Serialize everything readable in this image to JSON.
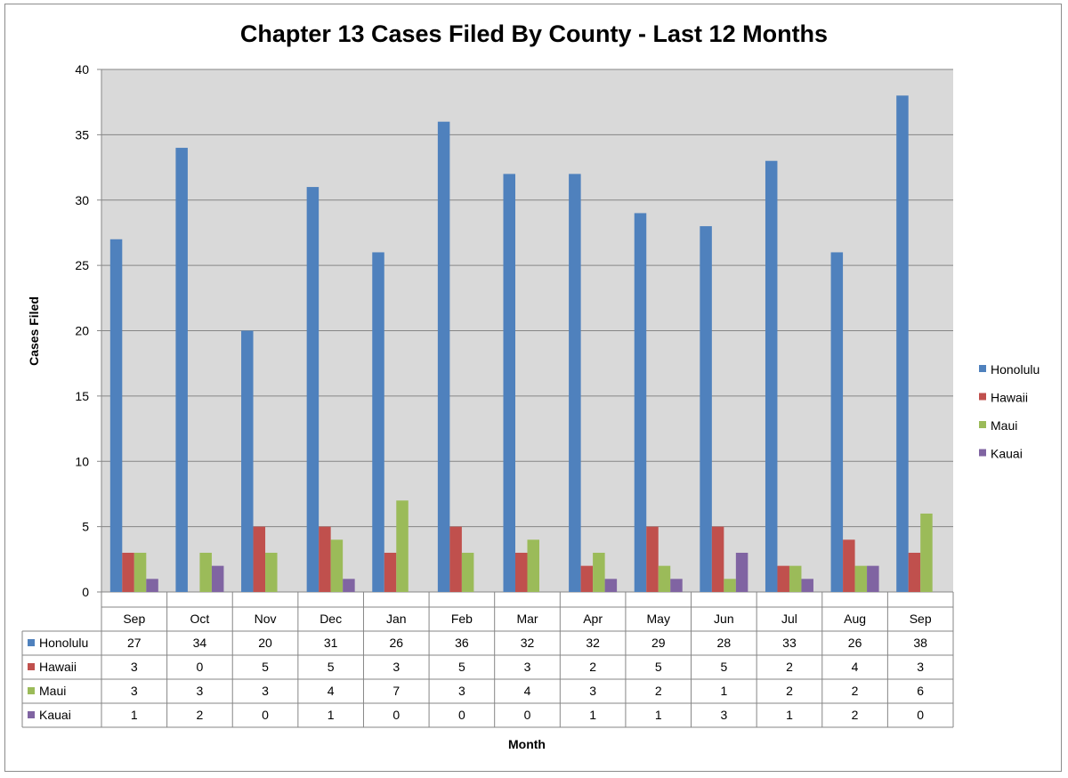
{
  "chart_data": {
    "type": "bar",
    "title": "Chapter 13 Cases Filed By County - Last 12 Months",
    "xlabel": "Month",
    "ylabel": "Cases Filed",
    "ylim": [
      0,
      40
    ],
    "yticks": [
      0,
      5,
      10,
      15,
      20,
      25,
      30,
      35,
      40
    ],
    "grid": true,
    "legend_position": "right",
    "categories": [
      "Sep",
      "Oct",
      "Nov",
      "Dec",
      "Jan",
      "Feb",
      "Mar",
      "Apr",
      "May",
      "Jun",
      "Jul",
      "Aug",
      "Sep"
    ],
    "series": [
      {
        "name": "Honolulu",
        "color": "#4f81bd",
        "values": [
          27,
          34,
          20,
          31,
          26,
          36,
          32,
          32,
          29,
          28,
          33,
          26,
          38
        ]
      },
      {
        "name": "Hawaii",
        "color": "#c0504d",
        "values": [
          3,
          0,
          5,
          5,
          3,
          5,
          3,
          2,
          5,
          5,
          2,
          4,
          3
        ]
      },
      {
        "name": "Maui",
        "color": "#9bbb59",
        "values": [
          3,
          3,
          3,
          4,
          7,
          3,
          4,
          3,
          2,
          1,
          2,
          2,
          6
        ]
      },
      {
        "name": "Kauai",
        "color": "#8064a2",
        "values": [
          1,
          2,
          0,
          1,
          0,
          0,
          0,
          1,
          1,
          3,
          1,
          2,
          0
        ]
      }
    ],
    "data_table": true,
    "plot_background": "#d9d9d9"
  }
}
